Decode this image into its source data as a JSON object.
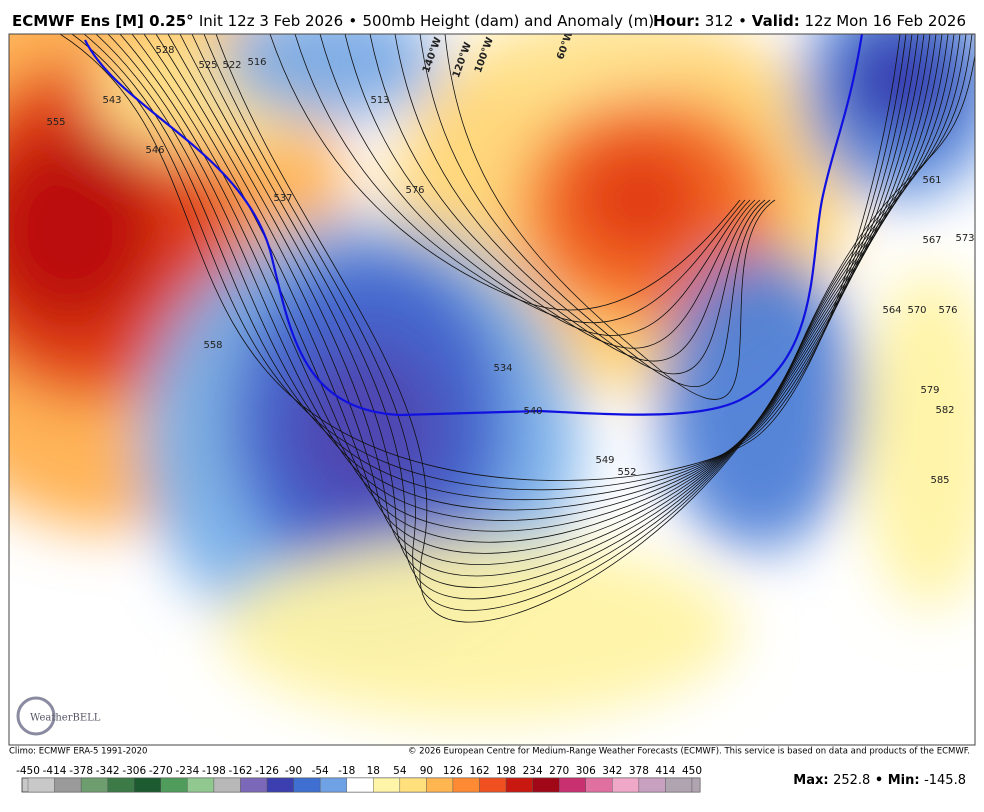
{
  "header": {
    "model": "ECMWF Ens [M] 0.25°",
    "init": "Init 12z 3 Feb 2026",
    "separator": "•",
    "field": "500mb Height (dam) and Anomaly (m)",
    "hour_label": "Hour:",
    "hour": "312",
    "valid_label": "Valid:",
    "valid": "12z Mon 16 Feb 2026"
  },
  "map": {
    "contour_labels": [
      528,
      525,
      522,
      543,
      555,
      546,
      537,
      558,
      516,
      513,
      576,
      534,
      540,
      549,
      552,
      561,
      567,
      573,
      564,
      570,
      576,
      579,
      582,
      585
    ],
    "longitude_labels": [
      "140°W",
      "120°W",
      "100°W",
      "60°W"
    ],
    "logo": "WeatherBELL"
  },
  "footer": {
    "climo": "Climo: ECMWF ERA-5 1991-2020",
    "copyright": "© 2026 European Centre for Medium-Range Weather Forecasts (ECMWF). This service is based on data and products of the ECMWF."
  },
  "colorbar": {
    "labels": [
      -450,
      -414,
      -378,
      -342,
      -306,
      -270,
      -234,
      -198,
      -162,
      -126,
      -90,
      -54,
      -18,
      18,
      54,
      90,
      126,
      162,
      198,
      234,
      270,
      306,
      342,
      378,
      414,
      450
    ],
    "colors": [
      "#c8c8c8",
      "#9a9a9a",
      "#6e9e70",
      "#3c7a48",
      "#1c5a30",
      "#4f9c5c",
      "#90c890",
      "#b8b8b8",
      "#7c68b8",
      "#3b3fb0",
      "#3f6fd0",
      "#6fa2e4",
      "#ffffff",
      "#fff5a8",
      "#ffe07c",
      "#ffb650",
      "#ff8a34",
      "#f05020",
      "#c81810",
      "#a00818",
      "#c83070",
      "#e070a0",
      "#f0a8c8",
      "#c8a0c0",
      "#b0a4b0"
    ]
  },
  "stats": {
    "max_label": "Max:",
    "max": 252.8,
    "min_label": "Min:",
    "min": -145.8
  }
}
